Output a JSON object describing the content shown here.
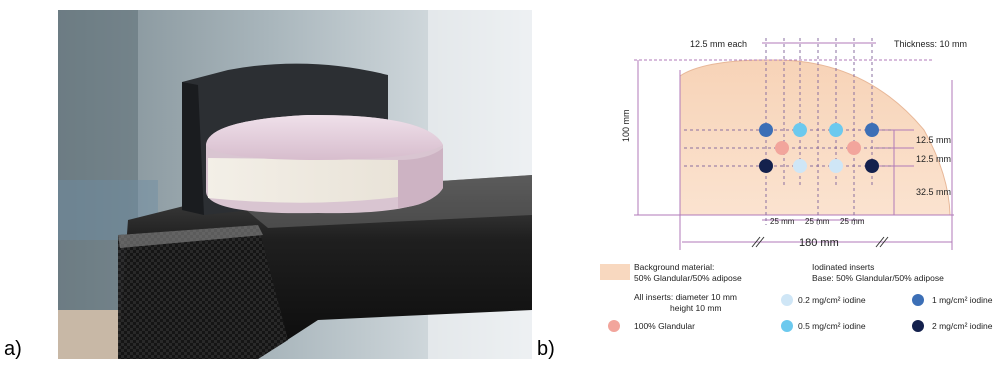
{
  "panel_labels": {
    "a": "a)",
    "b": "b)"
  },
  "diagram": {
    "dimensions": {
      "spacing_each": "12.5 mm each",
      "thickness": "Thickness: 10 mm",
      "height": "100 mm",
      "right_top": "12.5 mm",
      "right_mid": "12.5 mm",
      "right_bottom": "32.5 mm",
      "bottom_1": "25 mm",
      "bottom_2": "25 mm",
      "bottom_3": "25 mm",
      "width": "180 mm"
    },
    "legend": {
      "background_line1": "Background material:",
      "background_line2": "50% Glandular/50% adipose",
      "inserts_note_line1": "All inserts: diameter 10 mm",
      "inserts_note_line2": "height 10 mm",
      "glandular": "100% Glandular",
      "iodinated_title": "Iodinated inserts",
      "iodinated_base": "Base: 50% Glandular/50% adipose",
      "iodine_02": "0.2  mg/cm² iodine",
      "iodine_05": "0.5 mg/cm² iodine",
      "iodine_1": "1 mg/cm² iodine",
      "iodine_2": "2 mg/cm² iodine"
    },
    "colors": {
      "background": "#f8d8bf",
      "glandular": "#f2a59c",
      "iodine_02": "#cfe6f6",
      "iodine_05": "#6cc9ee",
      "iodine_1": "#3c6fb6",
      "iodine_2": "#14214d",
      "dimension_lines": "#b07ab8"
    }
  }
}
